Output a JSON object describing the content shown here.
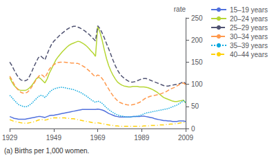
{
  "chart_data": {
    "type": "line",
    "ylabel": "rate",
    "annotations": [
      "(a) Births per 1,000 women."
    ],
    "xlim": [
      1929,
      2009
    ],
    "xticks": [
      1929,
      1949,
      1969,
      1989,
      2009
    ],
    "ylim": [
      0,
      250
    ],
    "yticks": [
      0,
      50,
      100,
      150,
      200,
      250
    ],
    "grid": false,
    "legend": "upper right",
    "x": [
      1929,
      1930,
      1931,
      1932,
      1933,
      1934,
      1935,
      1936,
      1937,
      1938,
      1939,
      1940,
      1941,
      1942,
      1943,
      1944,
      1945,
      1946,
      1947,
      1948,
      1949,
      1950,
      1951,
      1952,
      1953,
      1954,
      1955,
      1956,
      1957,
      1958,
      1959,
      1960,
      1961,
      1962,
      1963,
      1964,
      1965,
      1966,
      1967,
      1968,
      1969,
      1970,
      1971,
      1972,
      1973,
      1974,
      1975,
      1976,
      1977,
      1978,
      1979,
      1980,
      1981,
      1982,
      1983,
      1984,
      1985,
      1986,
      1987,
      1988,
      1989,
      1990,
      1991,
      1992,
      1993,
      1994,
      1995,
      1996,
      1997,
      1998,
      1999,
      2000,
      2001,
      2002,
      2003,
      2004,
      2005,
      2006,
      2007,
      2008,
      2009
    ],
    "series": [
      {
        "name": "15–19 years",
        "line_style": "solid",
        "values": [
          27,
          25,
          23,
          22,
          21,
          21,
          21,
          21,
          22,
          23,
          24,
          25,
          26,
          27,
          27,
          26,
          25,
          27,
          29,
          30,
          30,
          31,
          32,
          33,
          34,
          35,
          36,
          37,
          38,
          39,
          40,
          41,
          42,
          43,
          43,
          43,
          43,
          43,
          43,
          43,
          44,
          43,
          42,
          40,
          37,
          34,
          32,
          30,
          28,
          27,
          26,
          26,
          26,
          26,
          26,
          26,
          27,
          27,
          27,
          27,
          28,
          28,
          27,
          26,
          25,
          24,
          22,
          21,
          20,
          19,
          18,
          18,
          17,
          17,
          16,
          16,
          16,
          17,
          17,
          17,
          16
        ]
      },
      {
        "name": "20–24 years",
        "line_style": "solid",
        "values": [
          115,
          105,
          97,
          92,
          88,
          86,
          86,
          86,
          88,
          92,
          97,
          104,
          112,
          116,
          113,
          108,
          103,
          112,
          125,
          135,
          145,
          155,
          162,
          168,
          174,
          179,
          184,
          188,
          191,
          193,
          195,
          197,
          196,
          193,
          190,
          186,
          181,
          175,
          170,
          163,
          230,
          218,
          200,
          178,
          158,
          142,
          130,
          120,
          112,
          105,
          101,
          98,
          96,
          95,
          94,
          94,
          95,
          95,
          95,
          94,
          94,
          94,
          93,
          92,
          90,
          88,
          85,
          82,
          78,
          74,
          70,
          68,
          66,
          64,
          62,
          61,
          61,
          62,
          63,
          64,
          58
        ]
      },
      {
        "name": "25–29 years",
        "line_style": "dashed",
        "values": [
          150,
          142,
          132,
          123,
          115,
          110,
          108,
          108,
          110,
          118,
          128,
          140,
          150,
          160,
          164,
          160,
          155,
          168,
          180,
          190,
          197,
          202,
          207,
          212,
          216,
          220,
          224,
          227,
          229,
          231,
          231,
          229,
          227,
          224,
          221,
          217,
          213,
          208,
          203,
          198,
          232,
          226,
          216,
          205,
          192,
          180,
          167,
          154,
          142,
          132,
          124,
          118,
          114,
          110,
          107,
          105,
          105,
          106,
          108,
          110,
          112,
          113,
          113,
          111,
          109,
          107,
          105,
          103,
          101,
          99,
          97,
          96,
          96,
          97,
          98,
          99,
          100,
          101,
          103,
          106,
          101
        ]
      },
      {
        "name": "30–34 years",
        "line_style": "dashed",
        "values": [
          118,
          110,
          100,
          92,
          86,
          82,
          80,
          80,
          82,
          87,
          94,
          102,
          110,
          117,
          122,
          120,
          115,
          124,
          134,
          140,
          144,
          147,
          149,
          150,
          150,
          150,
          149,
          149,
          148,
          148,
          147,
          147,
          145,
          142,
          139,
          135,
          131,
          126,
          121,
          117,
          121,
          119,
          113,
          106,
          97,
          89,
          81,
          74,
          68,
          63,
          59,
          57,
          55,
          54,
          53,
          53,
          54,
          55,
          57,
          59,
          62,
          66,
          69,
          71,
          73,
          74,
          75,
          76,
          77,
          79,
          81,
          83,
          86,
          89,
          91,
          93,
          96,
          99,
          101,
          103,
          99
        ]
      },
      {
        "name": "35–39 years",
        "line_style": "dotted",
        "values": [
          75,
          70,
          64,
          59,
          54,
          52,
          50,
          49,
          50,
          53,
          57,
          62,
          67,
          72,
          75,
          74,
          70,
          75,
          82,
          86,
          89,
          91,
          92,
          93,
          93,
          92,
          91,
          90,
          89,
          88,
          86,
          84,
          82,
          79,
          76,
          73,
          69,
          65,
          62,
          59,
          62,
          60,
          57,
          52,
          47,
          43,
          39,
          36,
          33,
          31,
          29,
          28,
          27,
          26,
          26,
          26,
          27,
          27,
          28,
          29,
          31,
          33,
          35,
          36,
          37,
          38,
          39,
          40,
          41,
          42,
          43,
          44,
          45,
          47,
          49,
          51,
          53,
          56,
          59,
          63,
          59
        ]
      },
      {
        "name": "40–44 years",
        "line_style": "dashdot",
        "values": [
          20,
          18,
          16,
          15,
          14,
          13,
          12,
          12,
          12,
          13,
          14,
          15,
          17,
          19,
          20,
          20,
          19,
          20,
          22,
          23,
          24,
          24,
          24,
          24,
          24,
          24,
          23,
          23,
          22,
          22,
          21,
          20,
          19,
          18,
          17,
          16,
          15,
          14,
          13,
          12,
          13,
          12,
          11,
          10,
          9,
          8,
          7,
          7,
          6,
          6,
          5,
          5,
          5,
          5,
          5,
          5,
          5,
          5,
          5,
          5,
          5,
          6,
          6,
          6,
          7,
          7,
          7,
          7,
          8,
          8,
          8,
          9,
          9,
          10,
          10,
          11,
          11,
          12,
          13,
          14,
          13
        ]
      }
    ]
  }
}
